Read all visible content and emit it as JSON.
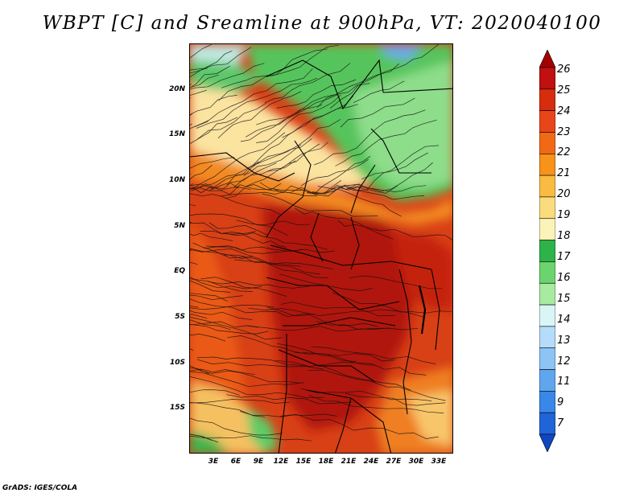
{
  "title": "WBPT [C] and Sreamline at 900hPa, VT: 2020040100",
  "footer": "GrADS: IGES/COLA",
  "map": {
    "variable": "Wet-bulb potential temperature",
    "units": "C",
    "level": "900hPa",
    "valid_time": "2020040100",
    "lat_labels": [
      "20N",
      "15N",
      "10N",
      "5N",
      "EQ",
      "5S",
      "10S",
      "15S"
    ],
    "lon_labels": [
      "3E",
      "6E",
      "9E",
      "12E",
      "15E",
      "18E",
      "21E",
      "24E",
      "27E",
      "30E",
      "33E"
    ]
  },
  "colorbar": {
    "levels": [
      "26",
      "25",
      "24",
      "23",
      "22",
      "21",
      "20",
      "19",
      "18",
      "17",
      "16",
      "15",
      "14",
      "13",
      "12",
      "11",
      "9",
      "7"
    ],
    "colors": [
      "#a50000",
      "#c01010",
      "#d52d0e",
      "#e9451a",
      "#f06a15",
      "#f7921a",
      "#f9bb42",
      "#fadc7e",
      "#fcf3b8",
      "#2db34a",
      "#6cd46e",
      "#a8eaa0",
      "#d9f5f5",
      "#b5dcfb",
      "#8dc4f5",
      "#5fa6ef",
      "#3987e8",
      "#1f65d8",
      "#1046c4"
    ]
  }
}
